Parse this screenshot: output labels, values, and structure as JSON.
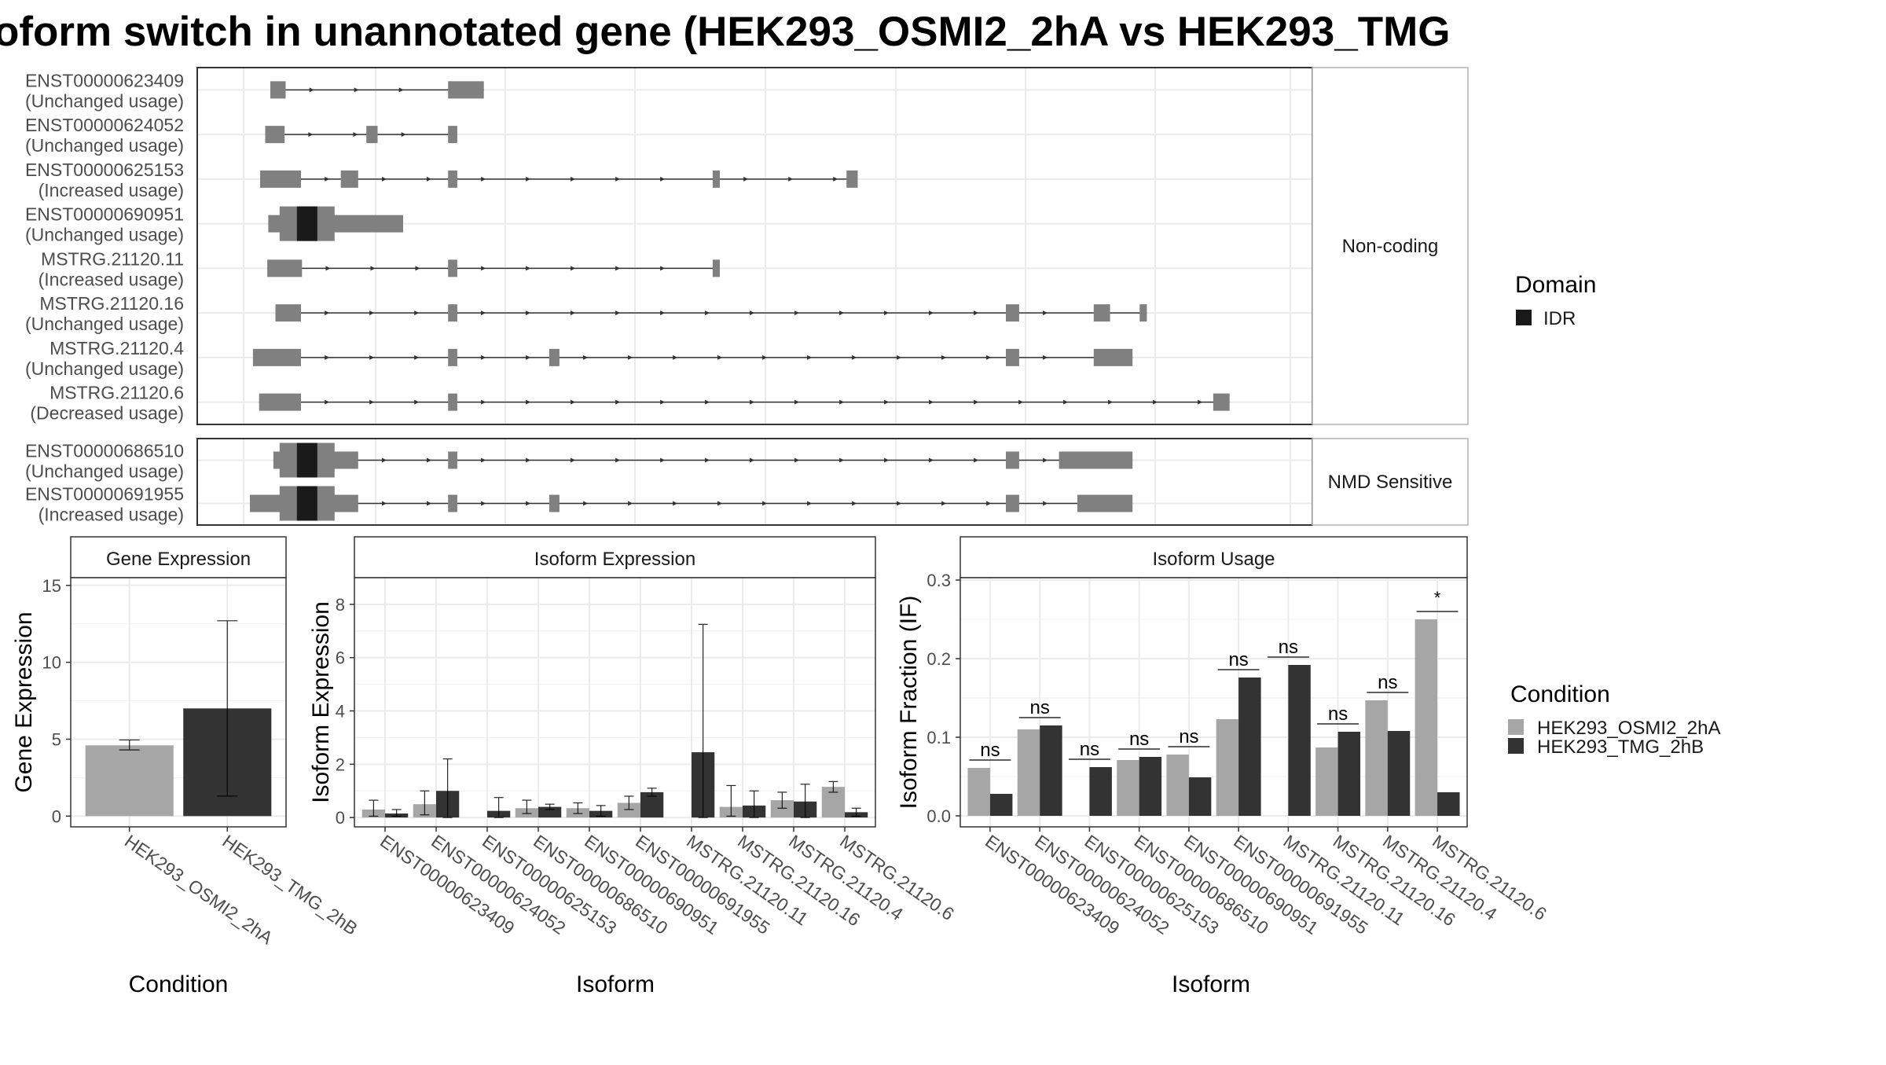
{
  "title": "oform switch in unannotated gene (HEK293_OSMI2_2hA vs HEK293_TMG",
  "colors": {
    "exon": "#808080",
    "idr": "#1a1a1a",
    "cond_a": "#a6a6a6",
    "cond_b": "#333333",
    "grid": "#ebebeb",
    "strip_bg": "#ffffff",
    "panel_border": "#333333"
  },
  "transcript_plot": {
    "legend_title": "Domain",
    "legend_items": [
      "IDR"
    ],
    "groups": [
      {
        "strip": "Non-coding",
        "transcripts": [
          {
            "id": "ENST00000623409",
            "status": "(Unchanged usage)",
            "exons": [
              [
                0.02,
                0.035
              ],
              [
                0.194,
                0.229
              ]
            ],
            "domains": []
          },
          {
            "id": "ENST00000624052",
            "status": "(Unchanged usage)",
            "exons": [
              [
                0.015,
                0.034
              ],
              [
                0.114,
                0.125
              ],
              [
                0.194,
                0.203
              ]
            ],
            "domains": []
          },
          {
            "id": "ENST00000625153",
            "status": "(Increased usage)",
            "exons": [
              [
                0.01,
                0.05
              ],
              [
                0.089,
                0.106
              ],
              [
                0.194,
                0.203
              ],
              [
                0.453,
                0.46
              ],
              [
                0.584,
                0.595
              ]
            ],
            "domains": []
          },
          {
            "id": "ENST00000690951",
            "status": "(Unchanged usage)",
            "exons": [
              [
                0.018,
                0.15
              ]
            ],
            "domains": [
              [
                0.046,
                0.066
              ]
            ]
          },
          {
            "id": "MSTRG.21120.11",
            "status": "(Increased usage)",
            "exons": [
              [
                0.017,
                0.051
              ],
              [
                0.194,
                0.203
              ],
              [
                0.453,
                0.46
              ]
            ],
            "domains": []
          },
          {
            "id": "MSTRG.21120.16",
            "status": "(Unchanged usage)",
            "exons": [
              [
                0.025,
                0.05
              ],
              [
                0.194,
                0.203
              ],
              [
                0.74,
                0.753
              ],
              [
                0.826,
                0.842
              ],
              [
                0.871,
                0.878
              ]
            ],
            "domains": []
          },
          {
            "id": "MSTRG.21120.4",
            "status": "(Unchanged usage)",
            "exons": [
              [
                0.003,
                0.05
              ],
              [
                0.194,
                0.203
              ],
              [
                0.293,
                0.303
              ],
              [
                0.74,
                0.753
              ],
              [
                0.826,
                0.864
              ]
            ],
            "domains": []
          },
          {
            "id": "MSTRG.21120.6",
            "status": "(Decreased usage)",
            "exons": [
              [
                0.009,
                0.05
              ],
              [
                0.194,
                0.203
              ],
              [
                0.943,
                0.959
              ]
            ],
            "domains": []
          }
        ]
      },
      {
        "strip": "NMD Sensitive",
        "transcripts": [
          {
            "id": "ENST00000686510",
            "status": "(Unchanged usage)",
            "exons": [
              [
                0.023,
                0.106
              ],
              [
                0.194,
                0.203
              ],
              [
                0.74,
                0.753
              ],
              [
                0.792,
                0.864
              ]
            ],
            "domains": [
              [
                0.046,
                0.066
              ]
            ]
          },
          {
            "id": "ENST00000691955",
            "status": "(Increased usage)",
            "exons": [
              [
                0.0,
                0.106
              ],
              [
                0.194,
                0.203
              ],
              [
                0.293,
                0.303
              ],
              [
                0.74,
                0.753
              ],
              [
                0.81,
                0.864
              ]
            ],
            "domains": [
              [
                0.046,
                0.066
              ]
            ]
          }
        ]
      }
    ]
  },
  "chart_data": [
    {
      "type": "bar",
      "title": "Gene Expression",
      "xlabel": "Condition",
      "ylabel": "Gene Expression",
      "categories": [
        "HEK293_OSMI2_2hA",
        "HEK293_TMG_2hB"
      ],
      "values": [
        4.6,
        7.0
      ],
      "error_low": [
        4.3,
        1.3
      ],
      "error_high": [
        4.95,
        12.7
      ],
      "ylim": [
        -0.7,
        15.5
      ],
      "yticks": [
        "0",
        "5",
        "10",
        "15"
      ],
      "grid": true
    },
    {
      "type": "bar",
      "title": "Isoform Expression",
      "xlabel": "Isoform",
      "ylabel": "Isoform Expression",
      "categories": [
        "ENST00000623409",
        "ENST00000624052",
        "ENST00000625153",
        "ENST00000686510",
        "ENST00000690951",
        "ENST00000691955",
        "MSTRG.21120.11",
        "MSTRG.21120.16",
        "MSTRG.21120.4",
        "MSTRG.21120.6"
      ],
      "series": [
        {
          "name": "HEK293_OSMI2_2hA",
          "values": [
            0.3,
            0.5,
            0.0,
            0.35,
            0.35,
            0.55,
            0.0,
            0.4,
            0.65,
            1.15
          ],
          "error_low": [
            0.05,
            0.1,
            0.0,
            0.15,
            0.15,
            0.3,
            0.0,
            0.05,
            0.35,
            0.95
          ],
          "error_high": [
            0.65,
            1.0,
            0.0,
            0.65,
            0.55,
            0.8,
            0.0,
            1.2,
            0.95,
            1.35
          ]
        },
        {
          "name": "HEK293_TMG_2hB",
          "values": [
            0.15,
            1.0,
            0.25,
            0.4,
            0.25,
            0.95,
            2.45,
            0.45,
            0.6,
            0.2
          ],
          "error_low": [
            0.05,
            0.0,
            0.0,
            0.3,
            0.05,
            0.8,
            0.0,
            0.0,
            0.0,
            0.05
          ],
          "error_high": [
            0.3,
            2.2,
            0.75,
            0.5,
            0.45,
            1.1,
            7.25,
            1.0,
            1.25,
            0.35
          ]
        }
      ],
      "ylim": [
        -0.35,
        9.0
      ],
      "yticks": [
        "0",
        "2",
        "4",
        "6",
        "8"
      ],
      "grid": true
    },
    {
      "type": "bar",
      "title": "Isoform Usage",
      "xlabel": "Isoform",
      "ylabel": "Isoform Fraction (IF)",
      "categories": [
        "ENST00000623409",
        "ENST00000624052",
        "ENST00000625153",
        "ENST00000686510",
        "ENST00000690951",
        "ENST00000691955",
        "MSTRG.21120.11",
        "MSTRG.21120.16",
        "MSTRG.21120.4",
        "MSTRG.21120.6"
      ],
      "series": [
        {
          "name": "HEK293_OSMI2_2hA",
          "values": [
            0.061,
            0.11,
            0.0,
            0.071,
            0.078,
            0.123,
            0.0,
            0.087,
            0.147,
            0.25
          ]
        },
        {
          "name": "HEK293_TMG_2hB",
          "values": [
            0.028,
            0.115,
            0.062,
            0.075,
            0.049,
            0.176,
            0.192,
            0.107,
            0.108,
            0.03
          ]
        }
      ],
      "significance": [
        "ns",
        "ns",
        "ns",
        "ns",
        "ns",
        "ns",
        "ns",
        "ns",
        "ns",
        "*"
      ],
      "ylim": [
        -0.014,
        0.303
      ],
      "yticks": [
        "0.0",
        "0.1",
        "0.2",
        "0.3"
      ],
      "grid": true
    }
  ],
  "condition_legend": {
    "title": "Condition",
    "items": [
      "HEK293_OSMI2_2hA",
      "HEK293_TMG_2hB"
    ]
  }
}
